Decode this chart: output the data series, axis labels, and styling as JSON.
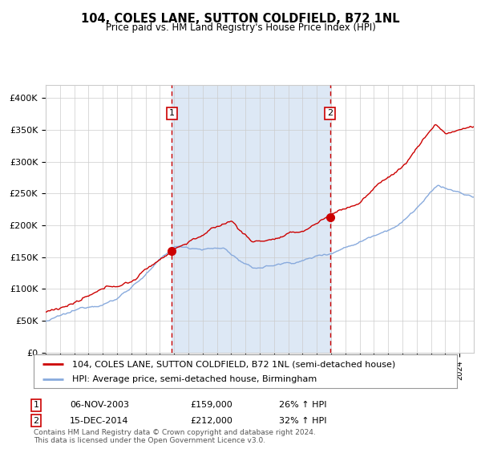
{
  "title": "104, COLES LANE, SUTTON COLDFIELD, B72 1NL",
  "subtitle": "Price paid vs. HM Land Registry's House Price Index (HPI)",
  "legend_line1": "104, COLES LANE, SUTTON COLDFIELD, B72 1NL (semi-detached house)",
  "legend_line2": "HPI: Average price, semi-detached house, Birmingham",
  "transaction1_date": "06-NOV-2003",
  "transaction1_price": 159000,
  "transaction1_hpi": "26% ↑ HPI",
  "transaction2_date": "15-DEC-2014",
  "transaction2_price": 212000,
  "transaction2_hpi": "32% ↑ HPI",
  "footnote1": "Contains HM Land Registry data © Crown copyright and database right 2024.",
  "footnote2": "This data is licensed under the Open Government Licence v3.0.",
  "red_color": "#cc0000",
  "blue_color": "#88aadd",
  "shading_color": "#dde8f5",
  "background_color": "#ffffff",
  "grid_color": "#cccccc",
  "ylim": [
    0,
    420000
  ],
  "yticks": [
    0,
    50000,
    100000,
    150000,
    200000,
    250000,
    300000,
    350000,
    400000
  ],
  "ytick_labels": [
    "£0",
    "£50K",
    "£100K",
    "£150K",
    "£200K",
    "£250K",
    "£300K",
    "£350K",
    "£400K"
  ],
  "start_year": 1995,
  "end_year": 2024,
  "t1_year": 2003.833,
  "t2_year": 2014.917
}
